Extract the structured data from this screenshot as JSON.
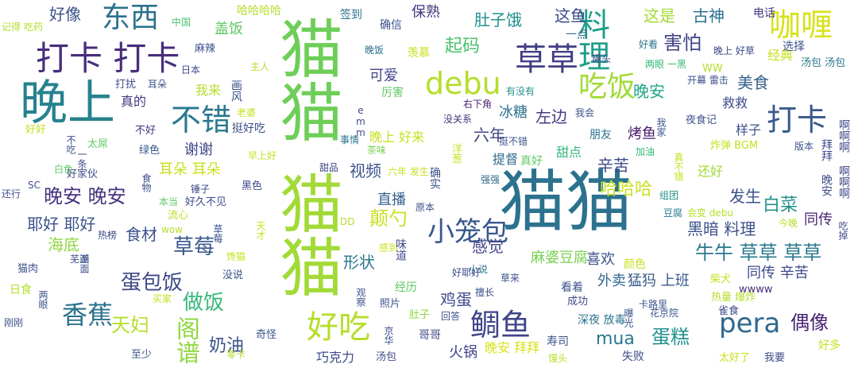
{
  "words": [
    {
      "text": "猫猫",
      "color": "#2c728e"
    },
    {
      "text": "猫猫",
      "color": "#6ece58"
    },
    {
      "text": "猫猫",
      "color": "#a2da37"
    },
    {
      "text": "晚上",
      "color": "#26828e"
    },
    {
      "text": "打卡 打卡",
      "color": "#472d7b"
    },
    {
      "text": "东西",
      "color": "#2c728e"
    },
    {
      "text": "好像",
      "color": "#3b528b"
    },
    {
      "text": "草草",
      "color": "#433e85"
    },
    {
      "text": "料理",
      "color": "#1f9e89"
    },
    {
      "text": "咖喱",
      "color": "#d8e219"
    },
    {
      "text": "打卡",
      "color": "#38588c"
    },
    {
      "text": "debu",
      "color": "#b5de2b"
    },
    {
      "text": "吃饭",
      "color": "#a2da37"
    },
    {
      "text": "不错",
      "color": "#2a788e"
    },
    {
      "text": "好吃",
      "color": "#b5de2b"
    },
    {
      "text": "鲷鱼",
      "color": "#414487"
    },
    {
      "text": "pera",
      "color": "#31688e"
    },
    {
      "text": "小笼包",
      "color": "#38588c"
    },
    {
      "text": "香蕉",
      "color": "#2c728e"
    },
    {
      "text": "天妇",
      "color": "#b5de2b"
    },
    {
      "text": "阁谱",
      "color": "#90d743"
    },
    {
      "text": "蛋包饭",
      "color": "#3e4a89"
    },
    {
      "text": "做饭",
      "color": "#35b779"
    },
    {
      "text": "晚安 晚安",
      "color": "#46327e"
    },
    {
      "text": "视频",
      "color": "#3b528b"
    },
    {
      "text": "颠勺",
      "color": "#c8e020"
    },
    {
      "text": "草莓",
      "color": "#38588c"
    },
    {
      "text": "牛牛 草草 草草",
      "color": "#2a788e"
    },
    {
      "text": "偶像",
      "color": "#482173"
    },
    {
      "text": "mua",
      "color": "#2a788e"
    },
    {
      "text": "蛋糕",
      "color": "#21918c"
    },
    {
      "text": "奶油",
      "color": "#3b528b"
    },
    {
      "text": "晚安",
      "color": "#21a685"
    },
    {
      "text": "这鱼",
      "color": "#3e4a89"
    },
    {
      "text": "这是",
      "color": "#a2da37"
    },
    {
      "text": "古神",
      "color": "#2c728e"
    },
    {
      "text": "害怕",
      "color": "#414487"
    },
    {
      "text": "肚子饿",
      "color": "#21918c"
    },
    {
      "text": "起码",
      "color": "#4ac16d"
    },
    {
      "text": "保熟",
      "color": "#453581"
    },
    {
      "text": "美食",
      "color": "#355f8d"
    },
    {
      "text": "左边",
      "color": "#443a83"
    },
    {
      "text": "可爱",
      "color": "#414487"
    },
    {
      "text": "冰糖",
      "color": "#2c728e"
    },
    {
      "text": "六年",
      "color": "#414487"
    },
    {
      "text": "烤鱼",
      "color": "#481b6d"
    },
    {
      "text": "辛苦",
      "color": "#3e4a89"
    },
    {
      "text": "哈哈哈",
      "color": "#c8e020"
    },
    {
      "text": "白菜",
      "color": "#21918c"
    },
    {
      "text": "发生",
      "color": "#3b528b"
    },
    {
      "text": "黑暗 料理",
      "color": "#3b528b"
    },
    {
      "text": "同传",
      "color": "#482173"
    },
    {
      "text": "直播",
      "color": "#355f8d"
    },
    {
      "text": "感觉",
      "color": "#414487"
    },
    {
      "text": "食材",
      "color": "#3b528b"
    },
    {
      "text": "耶好 耶好",
      "color": "#3b528b"
    },
    {
      "text": "海底",
      "color": "#90d743"
    },
    {
      "text": "耳朵 耳朵",
      "color": "#c8e020"
    },
    {
      "text": "谢谢",
      "color": "#414487"
    },
    {
      "text": "麻婆豆腐",
      "color": "#7ad151"
    },
    {
      "text": "喜欢",
      "color": "#3b528b"
    },
    {
      "text": "形状",
      "color": "#2a788e"
    },
    {
      "text": "鸡蛋",
      "color": "#3e4a89"
    },
    {
      "text": "外卖",
      "color": "#31688e"
    },
    {
      "text": "猛犸 上班",
      "color": "#38588c"
    },
    {
      "text": "同传 辛苦",
      "color": "#3e4a89"
    },
    {
      "text": "火锅",
      "color": "#414487"
    },
    {
      "text": "晚安 拜拜",
      "color": "#d8e219"
    },
    {
      "text": "巧克力",
      "color": "#3e4a89"
    },
    {
      "text": "盖饭",
      "color": "#5ec962"
    },
    {
      "text": "真的",
      "color": "#443a83"
    },
    {
      "text": "我来",
      "color": "#b5de2b"
    },
    {
      "text": "晚上 好来",
      "color": "#c8e020"
    },
    {
      "text": "提督",
      "color": "#31688e"
    },
    {
      "text": "真好",
      "color": "#5ec962"
    },
    {
      "text": "甜点",
      "color": "#35b779"
    },
    {
      "text": "朋友",
      "color": "#2c728e"
    },
    {
      "text": "还好",
      "color": "#a2da37"
    },
    {
      "text": "样子",
      "color": "#3b528b"
    },
    {
      "text": "救救",
      "color": "#3e4a89"
    },
    {
      "text": "经典",
      "color": "#c8e020"
    },
    {
      "text": "电话",
      "color": "#443a83"
    },
    {
      "text": "选择",
      "color": "#3b528b"
    },
    {
      "text": "签到",
      "color": "#2c728e"
    },
    {
      "text": "确信",
      "color": "#3b528b"
    },
    {
      "text": "哈哈哈哈",
      "color": "#b5de2b"
    },
    {
      "text": "中国",
      "color": "#4ac16d"
    },
    {
      "text": "麻辣",
      "color": "#3b528b"
    },
    {
      "text": "记得 吃药",
      "color": "#b5de2b"
    },
    {
      "text": "一点",
      "color": "#2c728e"
    },
    {
      "text": "罐头",
      "color": "#3e4a89"
    },
    {
      "text": "好看",
      "color": "#2c728e"
    },
    {
      "text": "晚上 好草",
      "color": "#3e4a89"
    },
    {
      "text": "两眼 一黑",
      "color": "#35b779"
    },
    {
      "text": "汤包 汤包",
      "color": "#2a788e"
    },
    {
      "text": "开幕 雷击",
      "color": "#3b528b"
    },
    {
      "text": "WW",
      "color": "#b5de2b"
    },
    {
      "text": "晚饭",
      "color": "#2c728e"
    },
    {
      "text": "羡慕",
      "color": "#c8e020"
    },
    {
      "text": "有没有",
      "color": "#21918c"
    },
    {
      "text": "厉害",
      "color": "#5ec962"
    },
    {
      "text": "右下角",
      "color": "#481b6d"
    },
    {
      "text": "我会",
      "color": "#3b528b"
    },
    {
      "text": "夜食记",
      "color": "#3b528b"
    },
    {
      "text": "没关系",
      "color": "#46327e"
    },
    {
      "text": "事情",
      "color": "#2c728e"
    },
    {
      "text": "茶味",
      "color": "#7ad151"
    },
    {
      "text": "挺不错",
      "color": "#3b528b"
    },
    {
      "text": "炸弹 BGM",
      "color": "#c8e020"
    },
    {
      "text": "版本",
      "color": "#3b528b"
    },
    {
      "text": "加油",
      "color": "#35b779"
    },
    {
      "text": "挺好吃",
      "color": "#3b528b"
    },
    {
      "text": "不好",
      "color": "#46327e"
    },
    {
      "text": "好好",
      "color": "#c8e020"
    },
    {
      "text": "太屌",
      "color": "#5ec962"
    },
    {
      "text": "绿色",
      "color": "#38588c"
    },
    {
      "text": "白色",
      "color": "#5ec962"
    },
    {
      "text": "好家伙",
      "color": "#3e4a89"
    },
    {
      "text": "早上好",
      "color": "#c8e020"
    },
    {
      "text": "甜品",
      "color": "#414487"
    },
    {
      "text": "六年 发生",
      "color": "#c8e020"
    },
    {
      "text": "强强",
      "color": "#31688e"
    },
    {
      "text": "组团",
      "color": "#21918c"
    },
    {
      "text": "豆腐",
      "color": "#2a788e"
    },
    {
      "text": "会变 debu",
      "color": "#b5de2b"
    },
    {
      "text": "今晚",
      "color": "#b5de2b"
    },
    {
      "text": "锤子",
      "color": "#3e4a89"
    },
    {
      "text": "黑色",
      "color": "#3e4a89"
    },
    {
      "text": "本当",
      "color": "#5ec962"
    },
    {
      "text": "好久不见",
      "color": "#3e4a89"
    },
    {
      "text": "还行",
      "color": "#3e4a89"
    },
    {
      "text": "SC",
      "color": "#3b528b"
    },
    {
      "text": "流心",
      "color": "#b5de2b"
    },
    {
      "text": "wow",
      "color": "#b5de2b"
    },
    {
      "text": "DD",
      "color": "#b5de2b"
    },
    {
      "text": "原本",
      "color": "#3b528b"
    },
    {
      "text": "热榜",
      "color": "#3e4a89"
    },
    {
      "text": "馋猫",
      "color": "#c8e020"
    },
    {
      "text": "感到",
      "color": "#c8e020"
    },
    {
      "text": "猫肉",
      "color": "#3b528b"
    },
    {
      "text": "芜湖",
      "color": "#3b528b"
    },
    {
      "text": "没说",
      "color": "#3b528b"
    },
    {
      "text": "好耶好",
      "color": "#3e4a89"
    },
    {
      "text": "草来",
      "color": "#3b528b"
    },
    {
      "text": "日食",
      "color": "#b5de2b"
    },
    {
      "text": "经历",
      "color": "#5ec962"
    },
    {
      "text": "擅长",
      "color": "#3b528b"
    },
    {
      "text": "看着",
      "color": "#3b528b"
    },
    {
      "text": "柴犬",
      "color": "#c8e020"
    },
    {
      "text": "wwww",
      "color": "#472d7b"
    },
    {
      "text": "成功",
      "color": "#3e4a89"
    },
    {
      "text": "热量 爆炸",
      "color": "#b5de2b"
    },
    {
      "text": "照片",
      "color": "#3b528b"
    },
    {
      "text": "卡路里",
      "color": "#3b528b"
    },
    {
      "text": "雀食",
      "color": "#3e4a89"
    },
    {
      "text": "花京院",
      "color": "#3b528b"
    },
    {
      "text": "刚刚",
      "color": "#3b528b"
    },
    {
      "text": "肚子",
      "color": "#90d743"
    },
    {
      "text": "回答",
      "color": "#3b528b"
    },
    {
      "text": "深夜 放毒",
      "color": "#2c728e"
    },
    {
      "text": "哥哥",
      "color": "#3e4a89"
    },
    {
      "text": "寿司",
      "color": "#3b528b"
    },
    {
      "text": "失败",
      "color": "#3e4a89"
    },
    {
      "text": "好多",
      "color": "#c8e020"
    },
    {
      "text": "至少",
      "color": "#3b528b"
    },
    {
      "text": "零卡",
      "color": "#b5de2b"
    },
    {
      "text": "奇怪",
      "color": "#3b528b"
    },
    {
      "text": "汤包",
      "color": "#3e4a89"
    },
    {
      "text": "馒头",
      "color": "#b5de2b"
    },
    {
      "text": "太好了",
      "color": "#c8e020"
    },
    {
      "text": "我要",
      "color": "#3e4a89"
    },
    {
      "text": "日本",
      "color": "#3e4a89"
    },
    {
      "text": "打扰",
      "color": "#3e4a89"
    },
    {
      "text": "耳朵",
      "color": "#3b528b"
    },
    {
      "text": "主人",
      "color": "#b5de2b"
    },
    {
      "text": "老婆",
      "color": "#c8e020"
    },
    {
      "text": "画风",
      "color": "#3b528b"
    },
    {
      "text": "emm",
      "color": "#3e4a89"
    },
    {
      "text": "我家",
      "color": "#3b528b"
    },
    {
      "text": "拜拜 晚安",
      "color": "#3e4a89"
    },
    {
      "text": "啊啊啊 啊啊啊",
      "color": "#3e4a89"
    },
    {
      "text": "吃掉",
      "color": "#3e4a89"
    },
    {
      "text": "不吃",
      "color": "#3b528b"
    },
    {
      "text": "一条",
      "color": "#3b528b"
    },
    {
      "text": "食物",
      "color": "#3b528b"
    },
    {
      "text": "天才",
      "color": "#c8e020"
    },
    {
      "text": "草莓",
      "color": "#3b528b"
    },
    {
      "text": "画面",
      "color": "#3b528b"
    },
    {
      "text": "观察",
      "color": "#3b528b"
    },
    {
      "text": "买家",
      "color": "#c8e020"
    },
    {
      "text": "两眼",
      "color": "#3b528b"
    },
    {
      "text": "颜色",
      "color": "#c8e020"
    },
    {
      "text": "小说",
      "color": "#2c728e"
    },
    {
      "text": "洋葱",
      "color": "#c8e020"
    },
    {
      "text": "味道",
      "color": "#3e4a89"
    },
    {
      "text": "曝光",
      "color": "#3b528b"
    },
    {
      "text": "京华",
      "color": "#3b528b"
    },
    {
      "text": "确实",
      "color": "#3b528b"
    },
    {
      "text": "真不错",
      "color": "#c8e020"
    }
  ]
}
